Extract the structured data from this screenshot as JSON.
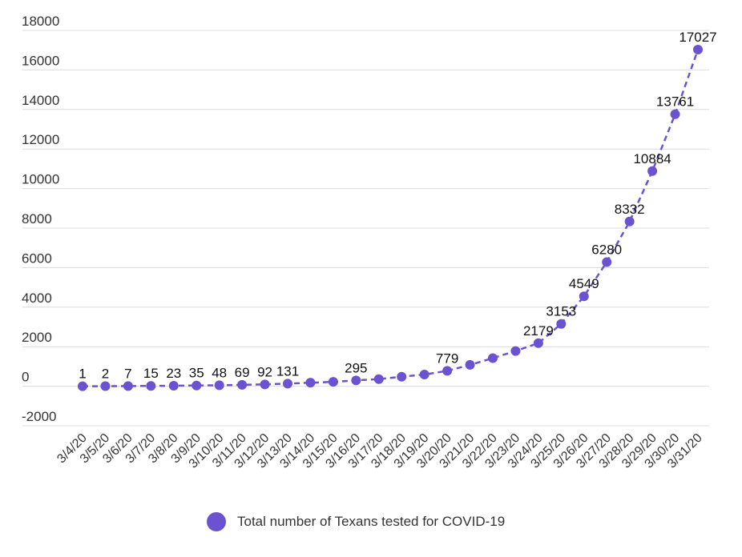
{
  "chart_data": {
    "type": "line",
    "title": "",
    "xlabel": "",
    "ylabel": "",
    "ylim": [
      -2000,
      18000
    ],
    "yticks": [
      -2000,
      0,
      2000,
      4000,
      6000,
      8000,
      10000,
      12000,
      14000,
      16000,
      18000
    ],
    "grid": true,
    "legend_position": "bottom",
    "categories": [
      "3/4/20",
      "3/5/20",
      "3/6/20",
      "3/7/20",
      "3/8/20",
      "3/9/20",
      "3/10/20",
      "3/11/20",
      "3/12/20",
      "3/13/20",
      "3/14/20",
      "3/15/20",
      "3/16/20",
      "3/17/20",
      "3/18/20",
      "3/19/20",
      "3/20/20",
      "3/21/20",
      "3/22/20",
      "3/23/20",
      "3/24/20",
      "3/25/20",
      "3/26/20",
      "3/27/20",
      "3/28/20",
      "3/29/20",
      "3/30/20",
      "3/31/20"
    ],
    "series": [
      {
        "name": "Total number of Texans tested for COVID-19",
        "color": "#6a52d1",
        "values": [
          1,
          2,
          7,
          15,
          23,
          35,
          48,
          69,
          92,
          131,
          180,
          220,
          295,
          360,
          480,
          590,
          779,
          1080,
          1420,
          1780,
          2179,
          3153,
          4549,
          6280,
          8332,
          10884,
          13761,
          17027
        ],
        "labels": [
          "1",
          "2",
          "7",
          "15",
          "23",
          "35",
          "48",
          "69",
          "92",
          "131",
          "",
          "",
          "295",
          "",
          "",
          "",
          "779",
          "",
          "",
          "",
          "2179",
          "3153",
          "4549",
          "6280",
          "8332",
          "10884",
          "13761",
          "17027"
        ]
      }
    ]
  }
}
